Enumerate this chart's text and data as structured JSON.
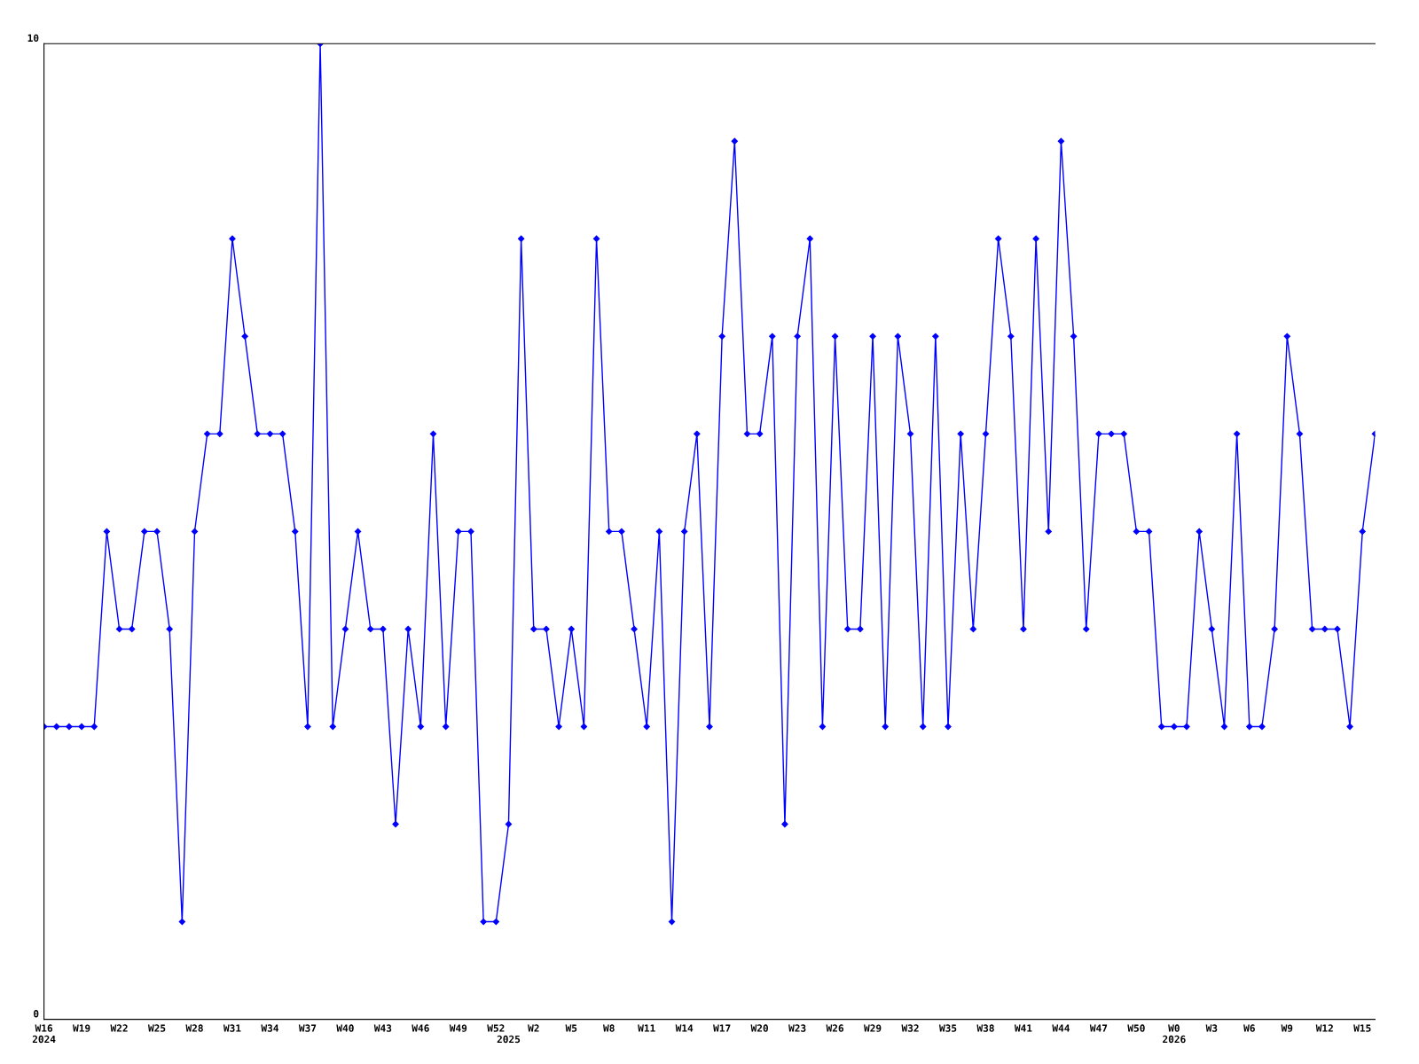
{
  "chart_data": {
    "type": "line",
    "categories": [
      "W16\n2024",
      null,
      null,
      "W19",
      null,
      null,
      "W22",
      null,
      null,
      "W25",
      null,
      null,
      "W28",
      null,
      null,
      "W31",
      null,
      null,
      "W34",
      null,
      null,
      "W37",
      null,
      null,
      "W40",
      null,
      null,
      "W43",
      null,
      null,
      "W46",
      null,
      null,
      "W49",
      null,
      null,
      "W52",
      "\n2025",
      null,
      "W2",
      null,
      null,
      "W5",
      null,
      null,
      "W8",
      null,
      null,
      "W11",
      null,
      null,
      "W14",
      null,
      null,
      "W17",
      null,
      null,
      "W20",
      null,
      null,
      "W23",
      null,
      null,
      "W26",
      null,
      null,
      "W29",
      null,
      null,
      "W32",
      null,
      null,
      "W35",
      null,
      null,
      "W38",
      null,
      null,
      "W41",
      null,
      null,
      "W44",
      null,
      null,
      "W47",
      null,
      null,
      "W50",
      null,
      null,
      "W0\n2026",
      null,
      null,
      "W3",
      null,
      null,
      "W6",
      null,
      null,
      "W9",
      null,
      null,
      "W12",
      null,
      null,
      "W15",
      null
    ],
    "series": [
      {
        "color": "#0000ff",
        "values": [
          3,
          3,
          3,
          3,
          3,
          5,
          4,
          4,
          5,
          5,
          4,
          1,
          5,
          6,
          6,
          8,
          7,
          6,
          6,
          6,
          5,
          3,
          10,
          3,
          4,
          5,
          4,
          4,
          2,
          4,
          3,
          6,
          3,
          5,
          5,
          1,
          1,
          2,
          8,
          4,
          4,
          3,
          4,
          3,
          8,
          5,
          5,
          4,
          3,
          5,
          1,
          5,
          6,
          3,
          7,
          9,
          6,
          6,
          7,
          2,
          7,
          8,
          3,
          7,
          4,
          4,
          7,
          3,
          7,
          6,
          3,
          7,
          3,
          6,
          4,
          6,
          8,
          7,
          4,
          8,
          5,
          9,
          7,
          4,
          6,
          6,
          6,
          5,
          5,
          3,
          3,
          3,
          5,
          4,
          3,
          6,
          3,
          3,
          4,
          7,
          6,
          4,
          4,
          4,
          3,
          5,
          6
        ]
      }
    ],
    "ylim": [
      0,
      10
    ],
    "yticks": [
      0,
      10
    ],
    "grid": false,
    "legend": false,
    "marker": "diamond",
    "line_style": "solid"
  }
}
